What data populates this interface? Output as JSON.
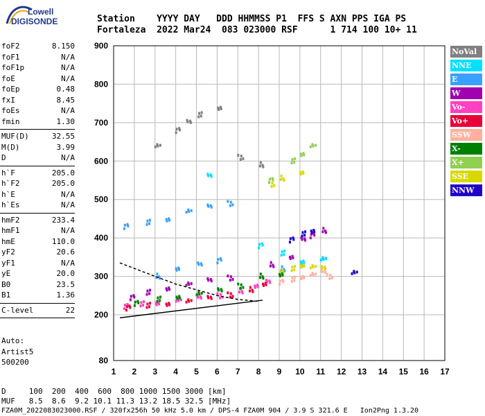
{
  "logo": {
    "line1": "Lowell",
    "line2": "DIGISONDE"
  },
  "header": {
    "line1": "Station    YYYY DAY   DDD HHMMSS P1  FFS S AXN PPS IGA PS",
    "line2": "Fortaleza  2022 Mar24  083 023000 RSF      1 714 100 10+ 11"
  },
  "params": {
    "group1": [
      {
        "k": "foF2",
        "v": "8.150"
      },
      {
        "k": "foF1",
        "v": "N/A"
      },
      {
        "k": "foF1p",
        "v": "N/A"
      },
      {
        "k": "foE",
        "v": "N/A"
      },
      {
        "k": "foEp",
        "v": "0.48"
      },
      {
        "k": "fxI",
        "v": "8.45"
      },
      {
        "k": "foEs",
        "v": "N/A"
      },
      {
        "k": "fmin",
        "v": "1.30"
      }
    ],
    "group2": [
      {
        "k": "MUF(D)",
        "v": "32.55"
      },
      {
        "k": "M(D)",
        "v": "3.99"
      },
      {
        "k": "D",
        "v": "N/A"
      }
    ],
    "group3": [
      {
        "k": "h`F",
        "v": "205.0"
      },
      {
        "k": "h`F2",
        "v": "205.0"
      },
      {
        "k": "h`E",
        "v": "N/A"
      },
      {
        "k": "h`Es",
        "v": "N/A"
      }
    ],
    "group4": [
      {
        "k": "hmF2",
        "v": "233.4"
      },
      {
        "k": "hmF1",
        "v": "N/A"
      },
      {
        "k": "hmE",
        "v": "110.0"
      },
      {
        "k": "yF2",
        "v": "20.6"
      },
      {
        "k": "yF1",
        "v": "N/A"
      },
      {
        "k": "yE",
        "v": "20.0"
      },
      {
        "k": "B0",
        "v": "23.5"
      },
      {
        "k": "B1",
        "v": "1.36"
      }
    ],
    "group5": [
      {
        "k": "C-level",
        "v": "22"
      }
    ]
  },
  "auto": [
    "Auto:",
    "Artist5",
    "500200"
  ],
  "legend": [
    {
      "label": "NoVal",
      "color": "#808080"
    },
    {
      "label": "NNE",
      "color": "#00e0ff"
    },
    {
      "label": "E",
      "color": "#3aa0ff"
    },
    {
      "label": "W",
      "color": "#a000b0"
    },
    {
      "label": "Vo-",
      "color": "#ff40c0"
    },
    {
      "label": "Vo+",
      "color": "#e8003a"
    },
    {
      "label": "SSW",
      "color": "#ffb0a0"
    },
    {
      "label": "X-",
      "color": "#008000"
    },
    {
      "label": "X+",
      "color": "#90d050"
    },
    {
      "label": "SSE",
      "color": "#d8d800"
    },
    {
      "label": "NNW",
      "color": "#2000c8"
    }
  ],
  "footer": {
    "line1": "D     100  200  400  600  800 1000 1500 3000 [km]",
    "line2": "MUF   8.5  8.6  9.2 10.1 11.3 13.2 18.5 32.5 [MHz]",
    "line3": "FZA0M_2022083023000.RSF / 320fx256h 50 kHz 5.0 km / DPS-4 FZA0M 904 / 3.9 S 321.6 E   Ion2Png 1.3.20"
  },
  "chart_data": {
    "type": "scatter",
    "x_ticks": [
      1,
      2,
      3,
      4,
      5,
      6,
      7,
      8,
      9,
      10,
      11,
      12,
      13,
      14,
      15,
      16,
      17
    ],
    "y_ticks": [
      80,
      200,
      300,
      400,
      500,
      600,
      700,
      800,
      900
    ],
    "xlim": [
      1,
      17
    ],
    "y_axis": "piecewise: 80-200 compressed, 200-900 linear",
    "grid": true,
    "series": [
      {
        "name": "Vo-",
        "color": "#ff40c0",
        "points": [
          [
            1.5,
            222
          ],
          [
            2.2,
            228
          ],
          [
            3,
            232
          ],
          [
            4,
            238
          ],
          [
            5,
            243
          ],
          [
            6,
            250
          ],
          [
            7,
            262
          ],
          [
            7.8,
            275
          ],
          [
            8.3,
            285
          ]
        ]
      },
      {
        "name": "Vo+",
        "color": "#e8003a",
        "points": [
          [
            1.6,
            218
          ],
          [
            2.5,
            224
          ],
          [
            3.5,
            230
          ],
          [
            4.5,
            236
          ],
          [
            5.5,
            242
          ],
          [
            6.5,
            252
          ],
          [
            7.5,
            265
          ],
          [
            8.2,
            280
          ]
        ]
      },
      {
        "name": "W",
        "color": "#a000b0",
        "points": [
          [
            1.8,
            245
          ],
          [
            2.5,
            258
          ],
          [
            3.5,
            270
          ],
          [
            4.5,
            280
          ],
          [
            5.5,
            288
          ],
          [
            6.5,
            296
          ],
          [
            8.5,
            330
          ],
          [
            9.5,
            350
          ],
          [
            10,
            395
          ],
          [
            10.5,
            405
          ],
          [
            11,
            420
          ]
        ]
      },
      {
        "name": "NNW",
        "color": "#2000c8",
        "points": [
          [
            9.5,
            395
          ],
          [
            10,
            410
          ],
          [
            10.5,
            420
          ],
          [
            12.5,
            310
          ]
        ]
      },
      {
        "name": "E",
        "color": "#3aa0ff",
        "points": [
          [
            1.5,
            430
          ],
          [
            2.5,
            440
          ],
          [
            3.5,
            450
          ],
          [
            4.5,
            470
          ],
          [
            5.5,
            480
          ],
          [
            6.5,
            490
          ],
          [
            3,
            300
          ],
          [
            4,
            320
          ],
          [
            5,
            330
          ],
          [
            6,
            340
          ],
          [
            9,
            320
          ],
          [
            10,
            330
          ],
          [
            11,
            345
          ]
        ]
      },
      {
        "name": "NNE",
        "color": "#00e0ff",
        "points": [
          [
            8,
            380
          ],
          [
            9,
            360
          ],
          [
            10,
            340
          ],
          [
            11,
            345
          ],
          [
            5.5,
            560
          ]
        ]
      },
      {
        "name": "SSW",
        "color": "#ffb0a0",
        "points": [
          [
            9,
            285
          ],
          [
            9.5,
            292
          ],
          [
            10,
            300
          ],
          [
            10.5,
            305
          ],
          [
            11,
            310
          ],
          [
            11.3,
            300
          ]
        ]
      },
      {
        "name": "SSE",
        "color": "#d8d800",
        "points": [
          [
            9,
            310
          ],
          [
            9.5,
            320
          ],
          [
            10,
            330
          ],
          [
            10.5,
            325
          ],
          [
            11,
            320
          ],
          [
            8.5,
            540
          ],
          [
            9,
            555
          ],
          [
            10,
            570
          ]
        ]
      },
      {
        "name": "X-",
        "color": "#008000",
        "points": [
          [
            2,
            230
          ],
          [
            3,
            240
          ],
          [
            4,
            248
          ],
          [
            5,
            255
          ],
          [
            6,
            262
          ],
          [
            7,
            275
          ],
          [
            8,
            300
          ],
          [
            9,
            305
          ]
        ]
      },
      {
        "name": "X+",
        "color": "#90d050",
        "points": [
          [
            8.5,
            550
          ],
          [
            9.5,
            600
          ],
          [
            10,
            620
          ],
          [
            10.5,
            640
          ]
        ]
      },
      {
        "name": "NoVal",
        "color": "#808080",
        "points": [
          [
            4,
            680
          ],
          [
            5,
            720
          ],
          [
            6,
            740
          ],
          [
            3,
            640
          ],
          [
            4.5,
            700
          ],
          [
            7,
            610
          ],
          [
            8,
            590
          ]
        ]
      }
    ],
    "trace_lines": [
      {
        "style": "solid",
        "points": [
          [
            1.3,
            192
          ],
          [
            8.2,
            238
          ]
        ]
      },
      {
        "style": "dashed",
        "points": [
          [
            1.3,
            335
          ],
          [
            3,
            300
          ],
          [
            4,
            280
          ],
          [
            5,
            265
          ],
          [
            6,
            250
          ],
          [
            7,
            240
          ],
          [
            8,
            235
          ]
        ]
      }
    ]
  }
}
